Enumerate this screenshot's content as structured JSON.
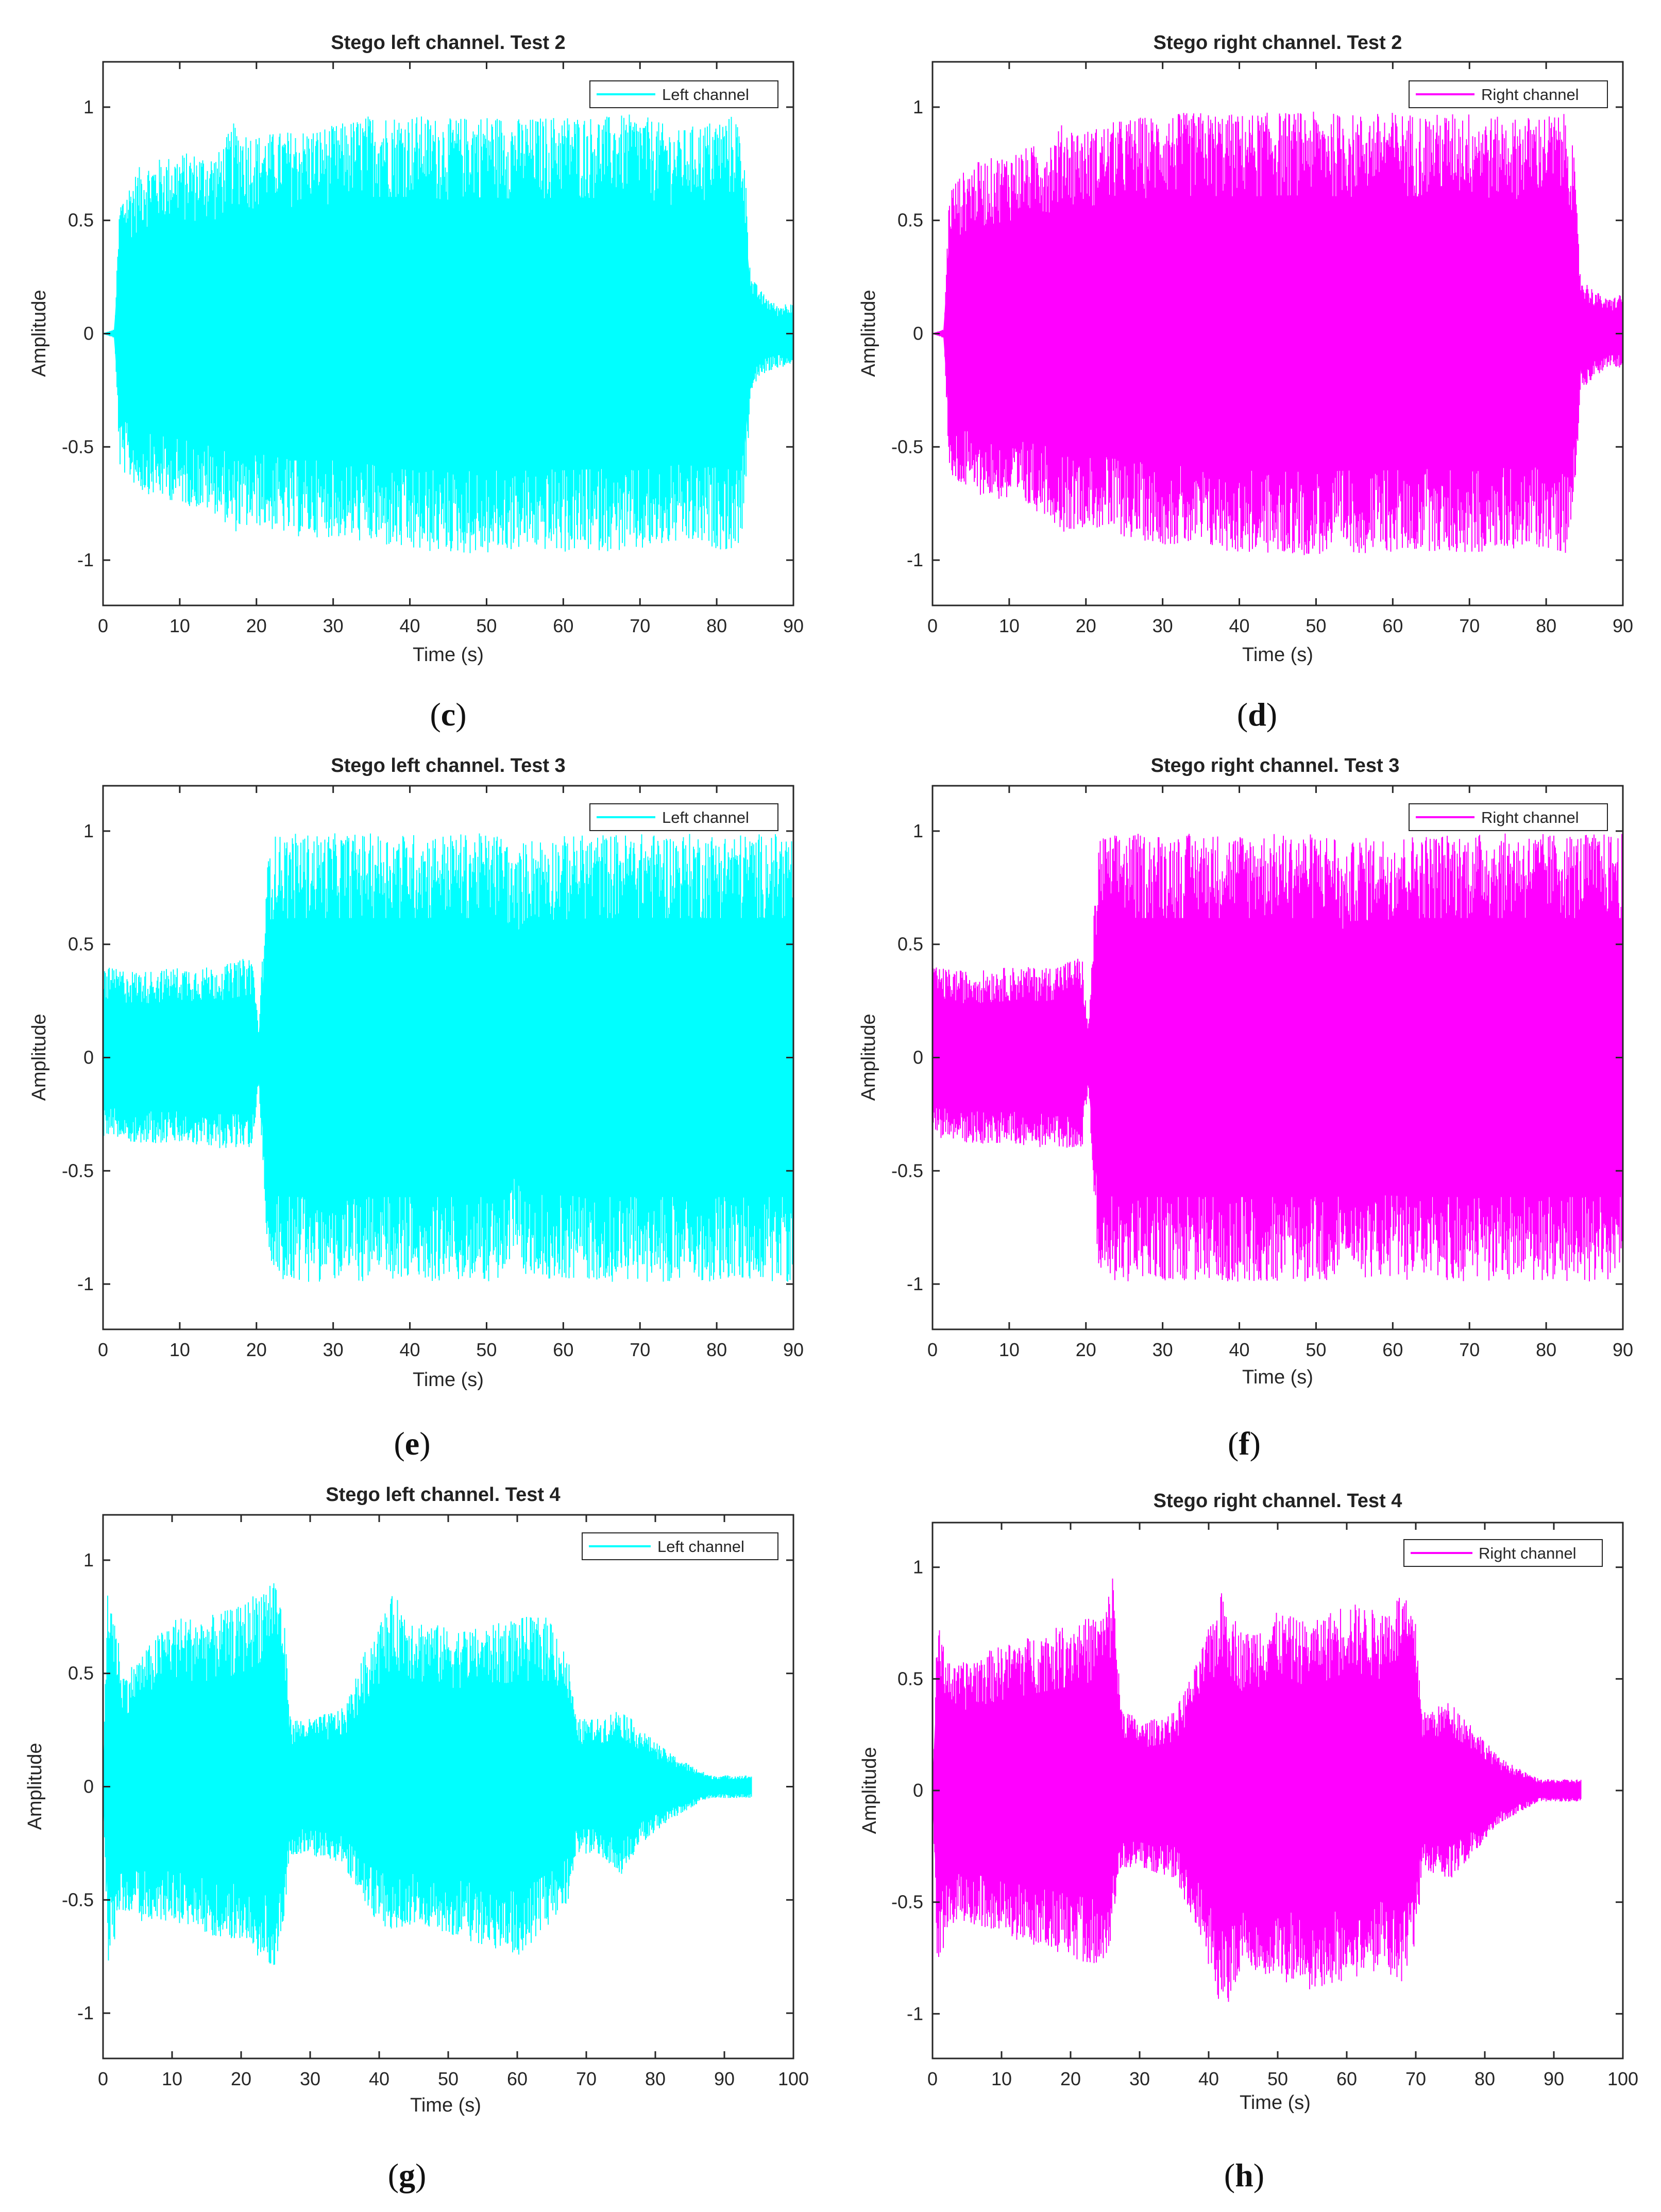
{
  "chart_data": [
    {
      "id": "c",
      "caption": "c",
      "type": "line",
      "title": "Stego left channel. Test 2",
      "xlabel": "Time (s)",
      "ylabel": "Amplitude",
      "xlim": [
        0,
        90
      ],
      "ylim": [
        -1.2,
        1.2
      ],
      "xticks": [
        "0",
        "10",
        "20",
        "30",
        "40",
        "50",
        "60",
        "70",
        "80",
        "90"
      ],
      "yticks": [
        "-1",
        "-0.5",
        "0",
        "0.5",
        "1"
      ],
      "series": [
        {
          "name": "Left channel",
          "color": "#00FFFF",
          "envelope": {
            "t": [
              0,
              1.5,
              2.2,
              5,
              10,
              15,
              17,
              20,
              25,
              30,
              35,
              40,
              45,
              50,
              55,
              60,
              65,
              70,
              75,
              80,
              82.5,
              83.5,
              84.5,
              86,
              88,
              90
            ],
            "upper": [
              0,
              0.02,
              0.6,
              0.75,
              0.8,
              0.8,
              0.93,
              0.88,
              0.9,
              0.92,
              0.97,
              0.97,
              0.95,
              0.97,
              0.95,
              0.97,
              0.96,
              0.97,
              0.9,
              0.95,
              0.97,
              0.85,
              0.25,
              0.18,
              0.12,
              0.15
            ],
            "lower": [
              0,
              -0.02,
              -0.6,
              -0.7,
              -0.75,
              -0.8,
              -0.88,
              -0.85,
              -0.9,
              -0.9,
              -0.93,
              -0.97,
              -0.97,
              -0.98,
              -0.95,
              -0.97,
              -0.96,
              -0.97,
              -0.93,
              -0.95,
              -0.97,
              -0.85,
              -0.25,
              -0.18,
              -0.15,
              -0.15
            ]
          }
        }
      ],
      "legend": "top-right"
    },
    {
      "id": "d",
      "caption": "d",
      "type": "line",
      "title": "Stego right channel. Test 2",
      "xlabel": "Time (s)",
      "ylabel": "Amplitude",
      "xlim": [
        0,
        90
      ],
      "ylim": [
        -1.2,
        1.2
      ],
      "xticks": [
        "0",
        "10",
        "20",
        "30",
        "40",
        "50",
        "60",
        "70",
        "80",
        "90"
      ],
      "yticks": [
        "-1",
        "-0.5",
        "0",
        "0.5",
        "1"
      ],
      "series": [
        {
          "name": "Right channel",
          "color": "#FF00FF",
          "envelope": {
            "t": [
              0,
              1.5,
              2.2,
              5,
              10,
              15,
              17,
              20,
              25,
              30,
              35,
              40,
              45,
              50,
              55,
              60,
              65,
              70,
              75,
              80,
              82.5,
              83.5,
              84.5,
              86,
              88,
              90
            ],
            "upper": [
              0,
              0.02,
              0.65,
              0.75,
              0.8,
              0.85,
              0.93,
              0.9,
              0.95,
              0.97,
              0.98,
              0.97,
              0.98,
              0.98,
              0.97,
              0.98,
              0.97,
              0.98,
              0.95,
              0.97,
              0.97,
              0.85,
              0.25,
              0.2,
              0.15,
              0.18
            ],
            "lower": [
              0,
              -0.02,
              -0.65,
              -0.7,
              -0.75,
              -0.8,
              -0.88,
              -0.85,
              -0.9,
              -0.93,
              -0.95,
              -0.97,
              -0.98,
              -0.98,
              -0.97,
              -0.97,
              -0.96,
              -0.98,
              -0.95,
              -0.95,
              -0.97,
              -0.85,
              -0.25,
              -0.2,
              -0.15,
              -0.15
            ]
          }
        }
      ],
      "legend": "top-right"
    },
    {
      "id": "e",
      "caption": "e",
      "type": "line",
      "title": "Stego left channel. Test 3",
      "xlabel": "Time (s)",
      "ylabel": "Amplitude",
      "xlim": [
        0,
        90
      ],
      "ylim": [
        -1.2,
        1.2
      ],
      "xticks": [
        "0",
        "10",
        "20",
        "30",
        "40",
        "50",
        "60",
        "70",
        "80",
        "90"
      ],
      "yticks": [
        "-1",
        "-0.5",
        "0",
        "0.5",
        "1"
      ],
      "series": [
        {
          "name": "Left channel",
          "color": "#00FFFF",
          "envelope": {
            "t": [
              0,
              5,
              10,
              15,
              19.5,
              20.3,
              21,
              21.7,
              25,
              30,
              35,
              40,
              45,
              50,
              52.5,
              53.5,
              55,
              60,
              65,
              70,
              75,
              80,
              85,
              90
            ],
            "upper": [
              0.4,
              0.38,
              0.4,
              0.4,
              0.45,
              0.12,
              0.6,
              0.98,
              0.99,
              0.99,
              0.99,
              0.99,
              0.99,
              0.99,
              0.99,
              0.85,
              0.97,
              0.98,
              0.99,
              0.99,
              0.99,
              0.99,
              0.99,
              0.99
            ],
            "lower": [
              -0.35,
              -0.38,
              -0.38,
              -0.4,
              -0.4,
              -0.12,
              -0.6,
              -0.98,
              -0.99,
              -0.99,
              -0.99,
              -0.99,
              -0.99,
              -0.99,
              -0.99,
              -0.85,
              -0.97,
              -0.98,
              -0.99,
              -0.99,
              -0.99,
              -0.99,
              -0.99,
              -0.99
            ]
          }
        }
      ],
      "legend": "top-right"
    },
    {
      "id": "f",
      "caption": "f",
      "type": "line",
      "title": "Stego right channel. Test 3",
      "xlabel": "Time (s)",
      "ylabel": "Amplitude",
      "xlim": [
        0,
        90
      ],
      "ylim": [
        -1.2,
        1.2
      ],
      "xticks": [
        "0",
        "10",
        "20",
        "30",
        "40",
        "50",
        "60",
        "70",
        "80",
        "90"
      ],
      "yticks": [
        "-1",
        "-0.5",
        "0",
        "0.5",
        "1"
      ],
      "series": [
        {
          "name": "Right channel",
          "color": "#FF00FF",
          "envelope": {
            "t": [
              0,
              5,
              10,
              15,
              19.5,
              20.3,
              21,
              21.7,
              25,
              30,
              35,
              40,
              45,
              50,
              52.5,
              53.5,
              55,
              60,
              65,
              70,
              75,
              80,
              85,
              90
            ],
            "upper": [
              0.4,
              0.38,
              0.4,
              0.4,
              0.45,
              0.12,
              0.6,
              0.98,
              0.99,
              0.99,
              0.99,
              0.99,
              0.99,
              0.99,
              0.99,
              0.85,
              0.97,
              0.98,
              0.99,
              0.99,
              0.99,
              0.99,
              0.99,
              0.99
            ],
            "lower": [
              -0.35,
              -0.38,
              -0.38,
              -0.4,
              -0.4,
              -0.12,
              -0.6,
              -0.98,
              -0.99,
              -0.99,
              -0.99,
              -0.99,
              -0.99,
              -0.99,
              -0.99,
              -0.85,
              -0.97,
              -0.98,
              -0.99,
              -0.99,
              -0.99,
              -0.99,
              -0.99,
              -0.99
            ]
          }
        }
      ],
      "legend": "top-right"
    },
    {
      "id": "g",
      "caption": "g",
      "type": "line",
      "title": "Stego left channel. Test 4",
      "xlabel": "Time (s)",
      "ylabel": "Amplitude",
      "xlim": [
        0,
        100
      ],
      "ylim": [
        -1.2,
        1.2
      ],
      "xticks": [
        "0",
        "10",
        "20",
        "30",
        "40",
        "50",
        "60",
        "70",
        "80",
        "90",
        "100"
      ],
      "yticks": [
        "-1",
        "-0.5",
        "0",
        "0.5",
        "1"
      ],
      "series": [
        {
          "name": "Left channel",
          "color": "#00FFFF",
          "envelope": {
            "t": [
              0,
              0.7,
              3,
              6,
              10,
              15,
              20,
              25,
              26.2,
              27.2,
              30,
              35,
              38,
              42,
              45,
              50,
              55,
              60,
              65,
              67.5,
              68.5,
              72,
              75,
              78,
              82,
              86,
              88,
              94
            ],
            "upper": [
              0,
              0.95,
              0.5,
              0.6,
              0.75,
              0.75,
              0.8,
              0.95,
              0.75,
              0.3,
              0.3,
              0.35,
              0.6,
              0.85,
              0.75,
              0.7,
              0.7,
              0.75,
              0.75,
              0.55,
              0.3,
              0.3,
              0.35,
              0.25,
              0.15,
              0.08,
              0.05,
              0.05
            ],
            "lower": [
              0,
              -0.78,
              -0.55,
              -0.6,
              -0.6,
              -0.65,
              -0.7,
              -0.8,
              -0.6,
              -0.3,
              -0.3,
              -0.35,
              -0.55,
              -0.65,
              -0.6,
              -0.65,
              -0.7,
              -0.75,
              -0.6,
              -0.5,
              -0.3,
              -0.3,
              -0.4,
              -0.25,
              -0.15,
              -0.08,
              -0.05,
              -0.05
            ]
          }
        }
      ],
      "legend": "top-right"
    },
    {
      "id": "h",
      "caption": "h",
      "type": "line",
      "title": "Stego right channel. Test 4",
      "xlabel": "Time (s)",
      "ylabel": "Amplitude",
      "xlim": [
        0,
        100
      ],
      "ylim": [
        -1.2,
        1.2
      ],
      "xticks": [
        "0",
        "10",
        "20",
        "30",
        "40",
        "50",
        "60",
        "70",
        "80",
        "90",
        "100"
      ],
      "yticks": [
        "-1",
        "-0.5",
        "0",
        "0.5",
        "1"
      ],
      "series": [
        {
          "name": "Right channel",
          "color": "#FF00FF",
          "envelope": {
            "t": [
              0,
              0.7,
              3,
              6,
              10,
              15,
              20,
              25,
              26.2,
              27.2,
              30,
              35,
              38,
              42,
              45,
              50,
              55,
              60,
              65,
              68,
              70,
              71,
              75,
              78,
              82,
              86,
              88,
              94
            ],
            "upper": [
              0,
              0.75,
              0.55,
              0.6,
              0.65,
              0.7,
              0.75,
              0.8,
              1.0,
              0.4,
              0.3,
              0.35,
              0.55,
              0.9,
              0.7,
              0.8,
              0.75,
              0.85,
              0.8,
              0.9,
              0.75,
              0.35,
              0.4,
              0.3,
              0.15,
              0.08,
              0.05,
              0.05
            ],
            "lower": [
              0,
              -0.78,
              -0.6,
              -0.6,
              -0.65,
              -0.7,
              -0.75,
              -0.8,
              -0.6,
              -0.35,
              -0.35,
              -0.4,
              -0.6,
              -1.02,
              -0.8,
              -0.85,
              -0.9,
              -0.85,
              -0.8,
              -0.9,
              -0.7,
              -0.35,
              -0.4,
              -0.3,
              -0.15,
              -0.08,
              -0.05,
              -0.05
            ]
          }
        }
      ],
      "legend": "top-right"
    }
  ]
}
